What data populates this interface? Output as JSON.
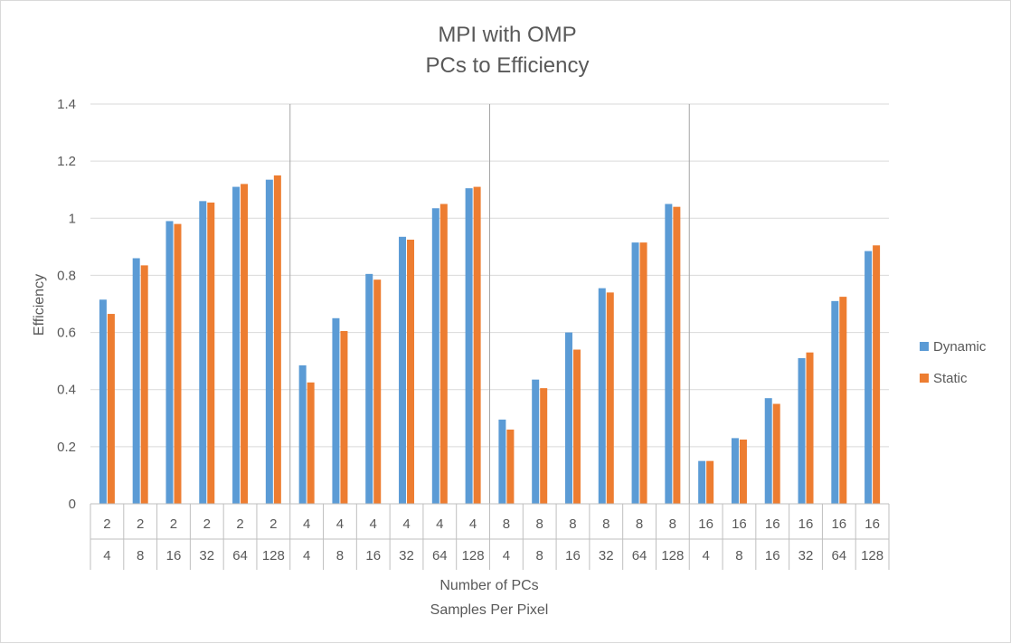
{
  "chart_data": {
    "type": "bar",
    "title": "MPI with OMP",
    "subtitle": "PCs to Efficiency",
    "xlabel": "Number of PCs",
    "xlabel2": "Samples Per Pixel",
    "ylabel": "Efficiency",
    "ylim": [
      0,
      1.4
    ],
    "yticks": [
      0,
      0.2,
      0.4,
      0.6,
      0.8,
      1,
      1.2,
      1.4
    ],
    "grid": true,
    "legend_position": "right",
    "groups": [
      "2",
      "4",
      "8",
      "16"
    ],
    "samples": [
      "4",
      "8",
      "16",
      "32",
      "64",
      "128"
    ],
    "categories": [
      "2 / 4",
      "2 / 8",
      "2 / 16",
      "2 / 32",
      "2 / 64",
      "2 / 128",
      "4 / 4",
      "4 / 8",
      "4 / 16",
      "4 / 32",
      "4 / 64",
      "4 / 128",
      "8 / 4",
      "8 / 8",
      "8 / 16",
      "8 / 32",
      "8 / 64",
      "8 / 128",
      "16 / 4",
      "16 / 8",
      "16 / 16",
      "16 / 32",
      "16 / 64",
      "16 / 128"
    ],
    "series": [
      {
        "name": "Dynamic",
        "color": "#5b9bd5",
        "values": [
          0.715,
          0.86,
          0.99,
          1.06,
          1.11,
          1.135,
          0.485,
          0.65,
          0.805,
          0.935,
          1.035,
          1.105,
          0.295,
          0.435,
          0.6,
          0.755,
          0.915,
          1.05,
          0.15,
          0.23,
          0.37,
          0.51,
          0.71,
          0.885
        ]
      },
      {
        "name": "Static",
        "color": "#ed7d31",
        "values": [
          0.665,
          0.835,
          0.98,
          1.055,
          1.12,
          1.15,
          0.425,
          0.605,
          0.785,
          0.925,
          1.05,
          1.11,
          0.26,
          0.405,
          0.54,
          0.74,
          0.915,
          1.04,
          0.15,
          0.225,
          0.35,
          0.53,
          0.725,
          0.905
        ]
      }
    ]
  }
}
